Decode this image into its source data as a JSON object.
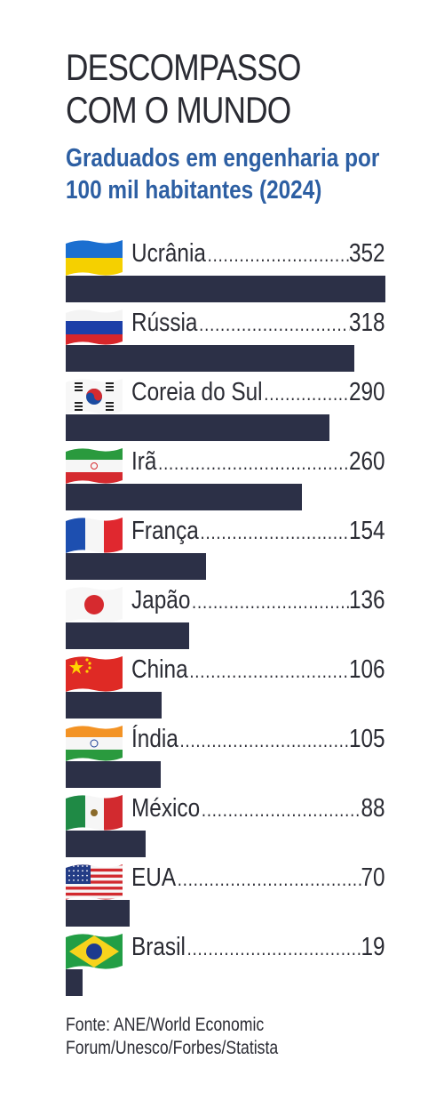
{
  "header": {
    "title_line1": "DESCOMPASSO",
    "title_line2": "COM O MUNDO",
    "subtitle_line1": "Graduados em engenharia por",
    "subtitle_line2": "100 mil habitantes (2024)"
  },
  "footer": {
    "source_line1": "Fonte: ANE/World Economic",
    "source_line2": "Forum/Unesco/Forbes/Statista"
  },
  "colors": {
    "bar": "#2c3047",
    "subtitle": "#2d5fa3",
    "text": "#2a2b33"
  },
  "chart_data": {
    "type": "bar",
    "orientation": "horizontal",
    "title": "DESCOMPASSO COM O MUNDO",
    "subtitle": "Graduados em engenharia por 100 mil habitantes (2024)",
    "categories": [
      "Ucrânia",
      "Rússia",
      "Coreia do Sul",
      "Irã",
      "França",
      "Japão",
      "China",
      "Índia",
      "México",
      "EUA",
      "Brasil"
    ],
    "values": [
      352,
      318,
      290,
      260,
      154,
      136,
      106,
      105,
      88,
      70,
      19
    ],
    "flag_icons": [
      "ukraine-flag",
      "russia-flag",
      "south-korea-flag",
      "iran-flag",
      "france-flag",
      "japan-flag",
      "china-flag",
      "india-flag",
      "mexico-flag",
      "usa-flag",
      "brazil-flag"
    ],
    "grid": false,
    "legend": "none"
  }
}
